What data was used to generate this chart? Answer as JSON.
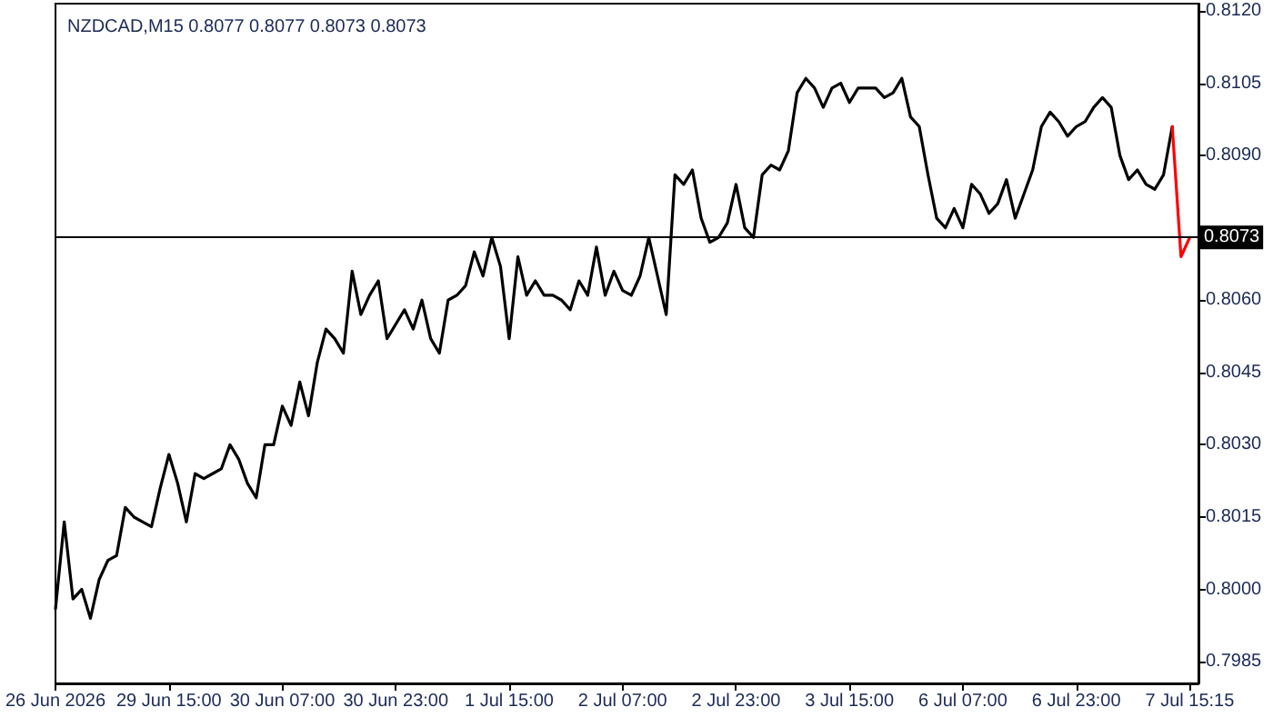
{
  "chart_data": {
    "type": "line",
    "title": "NZDCAD,M15 0.8077 0.8077 0.8073 0.8073",
    "categories": [
      "26 Jun 2026",
      null,
      null,
      null,
      null,
      null,
      null,
      null,
      null,
      null,
      null,
      null,
      null,
      "29 Jun 15:00",
      null,
      null,
      null,
      null,
      null,
      null,
      null,
      null,
      null,
      null,
      null,
      null,
      "30 Jun 07:00",
      null,
      null,
      null,
      null,
      null,
      null,
      null,
      null,
      null,
      null,
      null,
      null,
      "30 Jun 23:00",
      null,
      null,
      null,
      null,
      null,
      null,
      null,
      null,
      null,
      null,
      null,
      null,
      "1 Jul 15:00",
      null,
      null,
      null,
      null,
      null,
      null,
      null,
      null,
      null,
      null,
      null,
      null,
      "2 Jul 07:00",
      null,
      null,
      null,
      null,
      null,
      null,
      null,
      null,
      null,
      null,
      null,
      null,
      "2 Jul 23:00",
      null,
      null,
      null,
      null,
      null,
      null,
      null,
      null,
      null,
      null,
      null,
      null,
      "3 Jul 15:00",
      null,
      null,
      null,
      null,
      null,
      null,
      null,
      null,
      null,
      null,
      null,
      null,
      "6 Jul 07:00",
      null,
      null,
      null,
      null,
      null,
      null,
      null,
      null,
      null,
      null,
      null,
      null,
      "6 Jul 23:00",
      null,
      null,
      null,
      null,
      null,
      null,
      null,
      null,
      null,
      null,
      null,
      null,
      "7 Jul 15:15",
      null
    ],
    "series": [
      {
        "color": "#000000",
        "values": [
          0.7996,
          0.8014,
          0.7998,
          0.8,
          0.7994,
          0.8002,
          0.8006,
          0.8007,
          0.8017,
          0.8015,
          0.8014,
          0.8013,
          0.8021,
          0.8028,
          0.8022,
          0.8014,
          0.8024,
          0.8023,
          0.8024,
          0.8025,
          0.803,
          0.8027,
          0.8022,
          0.8019,
          0.803,
          0.803,
          0.8038,
          0.8034,
          0.8043,
          0.8036,
          0.8047,
          0.8054,
          0.8052,
          0.8049,
          0.8066,
          0.8057,
          0.8061,
          0.8064,
          0.8052,
          0.8055,
          0.8058,
          0.8054,
          0.806,
          0.8052,
          0.8049,
          0.806,
          0.8061,
          0.8063,
          0.807,
          0.8065,
          0.8073,
          0.8067,
          0.8052,
          0.8069,
          0.8061,
          0.8064,
          0.8061,
          0.8061,
          0.806,
          0.8058,
          0.8064,
          0.8061,
          0.8071,
          0.8061,
          0.8066,
          0.8062,
          0.8061,
          0.8065,
          0.8073,
          0.8065,
          0.8057,
          0.8086,
          0.8084,
          0.8087,
          0.8077,
          0.8072,
          0.8073,
          0.8076,
          0.8084,
          0.8075,
          0.8073,
          0.8086,
          0.8088,
          0.8087,
          0.8091,
          0.8103,
          0.8106,
          0.8104,
          0.81,
          0.8104,
          0.8105,
          0.8101,
          0.8104,
          0.8104,
          0.8104,
          0.8102,
          0.8103,
          0.8106,
          0.8098,
          0.8096,
          0.8086,
          0.8077,
          0.8075,
          0.8079,
          0.8075,
          0.8084,
          0.8082,
          0.8078,
          0.808,
          0.8085,
          0.8077,
          0.8082,
          0.8087,
          0.8096,
          0.8099,
          0.8097,
          0.8094,
          0.8096,
          0.8097,
          0.81,
          0.8102,
          0.81,
          0.809,
          0.8085,
          0.8087,
          0.8084,
          0.8083,
          0.8086,
          0.8096,
          null,
          null,
          null
        ]
      },
      {
        "color": "#ff0000",
        "values": [
          null,
          null,
          null,
          null,
          null,
          null,
          null,
          null,
          null,
          null,
          null,
          null,
          null,
          null,
          null,
          null,
          null,
          null,
          null,
          null,
          null,
          null,
          null,
          null,
          null,
          null,
          null,
          null,
          null,
          null,
          null,
          null,
          null,
          null,
          null,
          null,
          null,
          null,
          null,
          null,
          null,
          null,
          null,
          null,
          null,
          null,
          null,
          null,
          null,
          null,
          null,
          null,
          null,
          null,
          null,
          null,
          null,
          null,
          null,
          null,
          null,
          null,
          null,
          null,
          null,
          null,
          null,
          null,
          null,
          null,
          null,
          null,
          null,
          null,
          null,
          null,
          null,
          null,
          null,
          null,
          null,
          null,
          null,
          null,
          null,
          null,
          null,
          null,
          null,
          null,
          null,
          null,
          null,
          null,
          null,
          null,
          null,
          null,
          null,
          null,
          null,
          null,
          null,
          null,
          null,
          null,
          null,
          null,
          null,
          null,
          null,
          null,
          null,
          null,
          null,
          null,
          null,
          null,
          null,
          null,
          null,
          null,
          null,
          null,
          null,
          null,
          null,
          null,
          0.8096,
          0.8069,
          0.8073,
          null
        ]
      }
    ],
    "ylim": [
      0.79805,
      0.81215
    ],
    "yticks": [
      0.7985,
      {
        "value": 0.8,
        "label": "0.8000"
      },
      0.8015,
      {
        "value": 0.803,
        "label": "0.8030"
      },
      0.8045,
      {
        "value": 0.806,
        "label": "0.8060"
      },
      {
        "value": 0.8075,
        "label": null
      },
      {
        "value": 0.809,
        "label": "0.8090"
      },
      0.8105,
      {
        "value": 0.812,
        "label": "0.8120"
      }
    ],
    "ref_lines": [
      {
        "axis": "y",
        "value": 0.8073,
        "label": "0.8073",
        "color": "#000000"
      }
    ],
    "marker": "none",
    "grid": false
  }
}
